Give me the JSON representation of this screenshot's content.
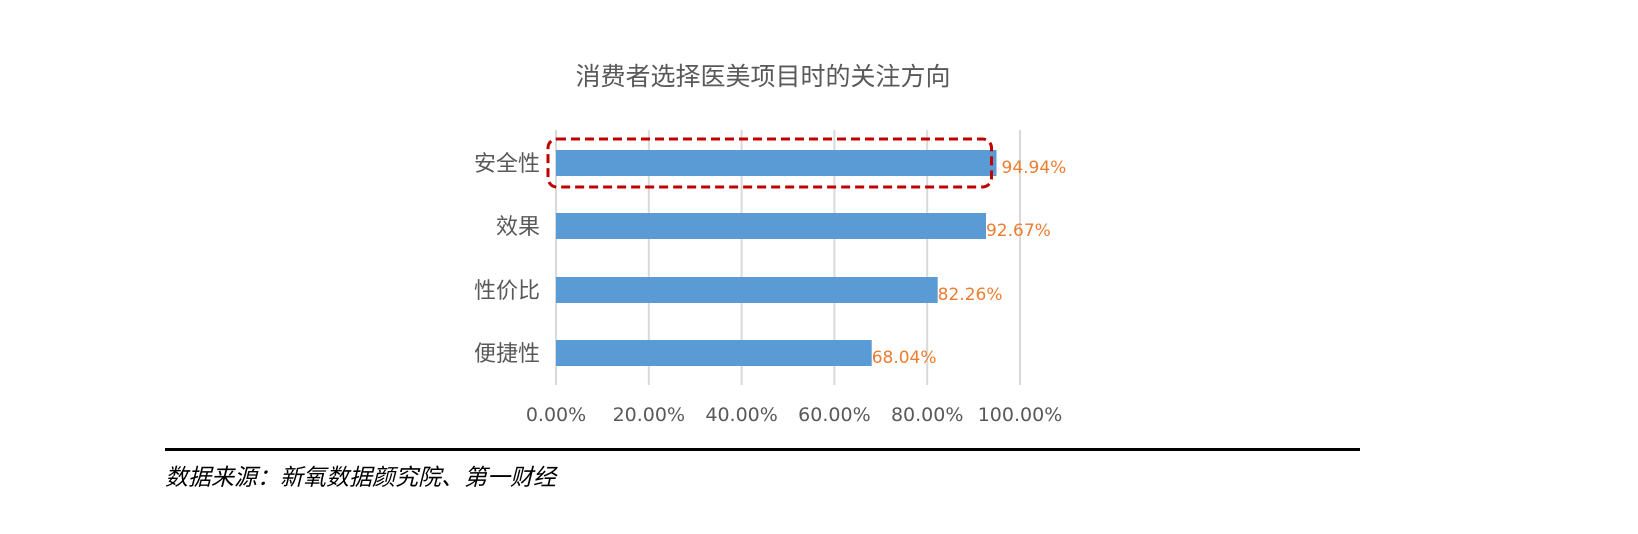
{
  "chart_data": {
    "type": "bar",
    "orientation": "horizontal",
    "title": "消费者选择医美项目时的关注方向",
    "categories": [
      "安全性",
      "效果",
      "性价比",
      "便捷性"
    ],
    "values": [
      94.94,
      92.67,
      82.26,
      68.04
    ],
    "data_labels": [
      "94.94%",
      "92.67%",
      "82.26%",
      "68.04%"
    ],
    "xlim": [
      0,
      100
    ],
    "x_ticks": [
      0,
      20,
      40,
      60,
      80,
      100
    ],
    "x_tick_labels": [
      "0.00%",
      "20.00%",
      "40.00%",
      "60.00%",
      "80.00%",
      "100.00%"
    ],
    "grid": "vertical",
    "highlighted_category": "安全性",
    "colors": {
      "bar": "#5B9BD5",
      "data_label": "#ED7D31",
      "highlight_box": "#C00000",
      "grid": "#D9D9D9"
    }
  },
  "source": {
    "text": "数据来源：新氧数据颜究院、第一财经"
  }
}
